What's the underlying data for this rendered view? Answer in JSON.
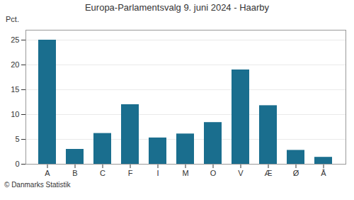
{
  "chart_data": {
    "type": "bar",
    "title": "Europa-Parlamentsvalg 9. juni 2024 - Haarby",
    "categories": [
      "A",
      "B",
      "C",
      "F",
      "I",
      "M",
      "O",
      "V",
      "Æ",
      "Ø",
      "Å"
    ],
    "values": [
      25.0,
      3.0,
      6.2,
      12.0,
      5.3,
      6.1,
      8.4,
      19.0,
      11.8,
      2.8,
      1.4
    ],
    "color": "#1a6e8e",
    "ylabel": "Pct.",
    "ylim": [
      0,
      27
    ],
    "yticks": [
      0,
      5,
      10,
      15,
      20,
      25
    ],
    "grid": true,
    "footer": "© Danmarks Statistik"
  }
}
